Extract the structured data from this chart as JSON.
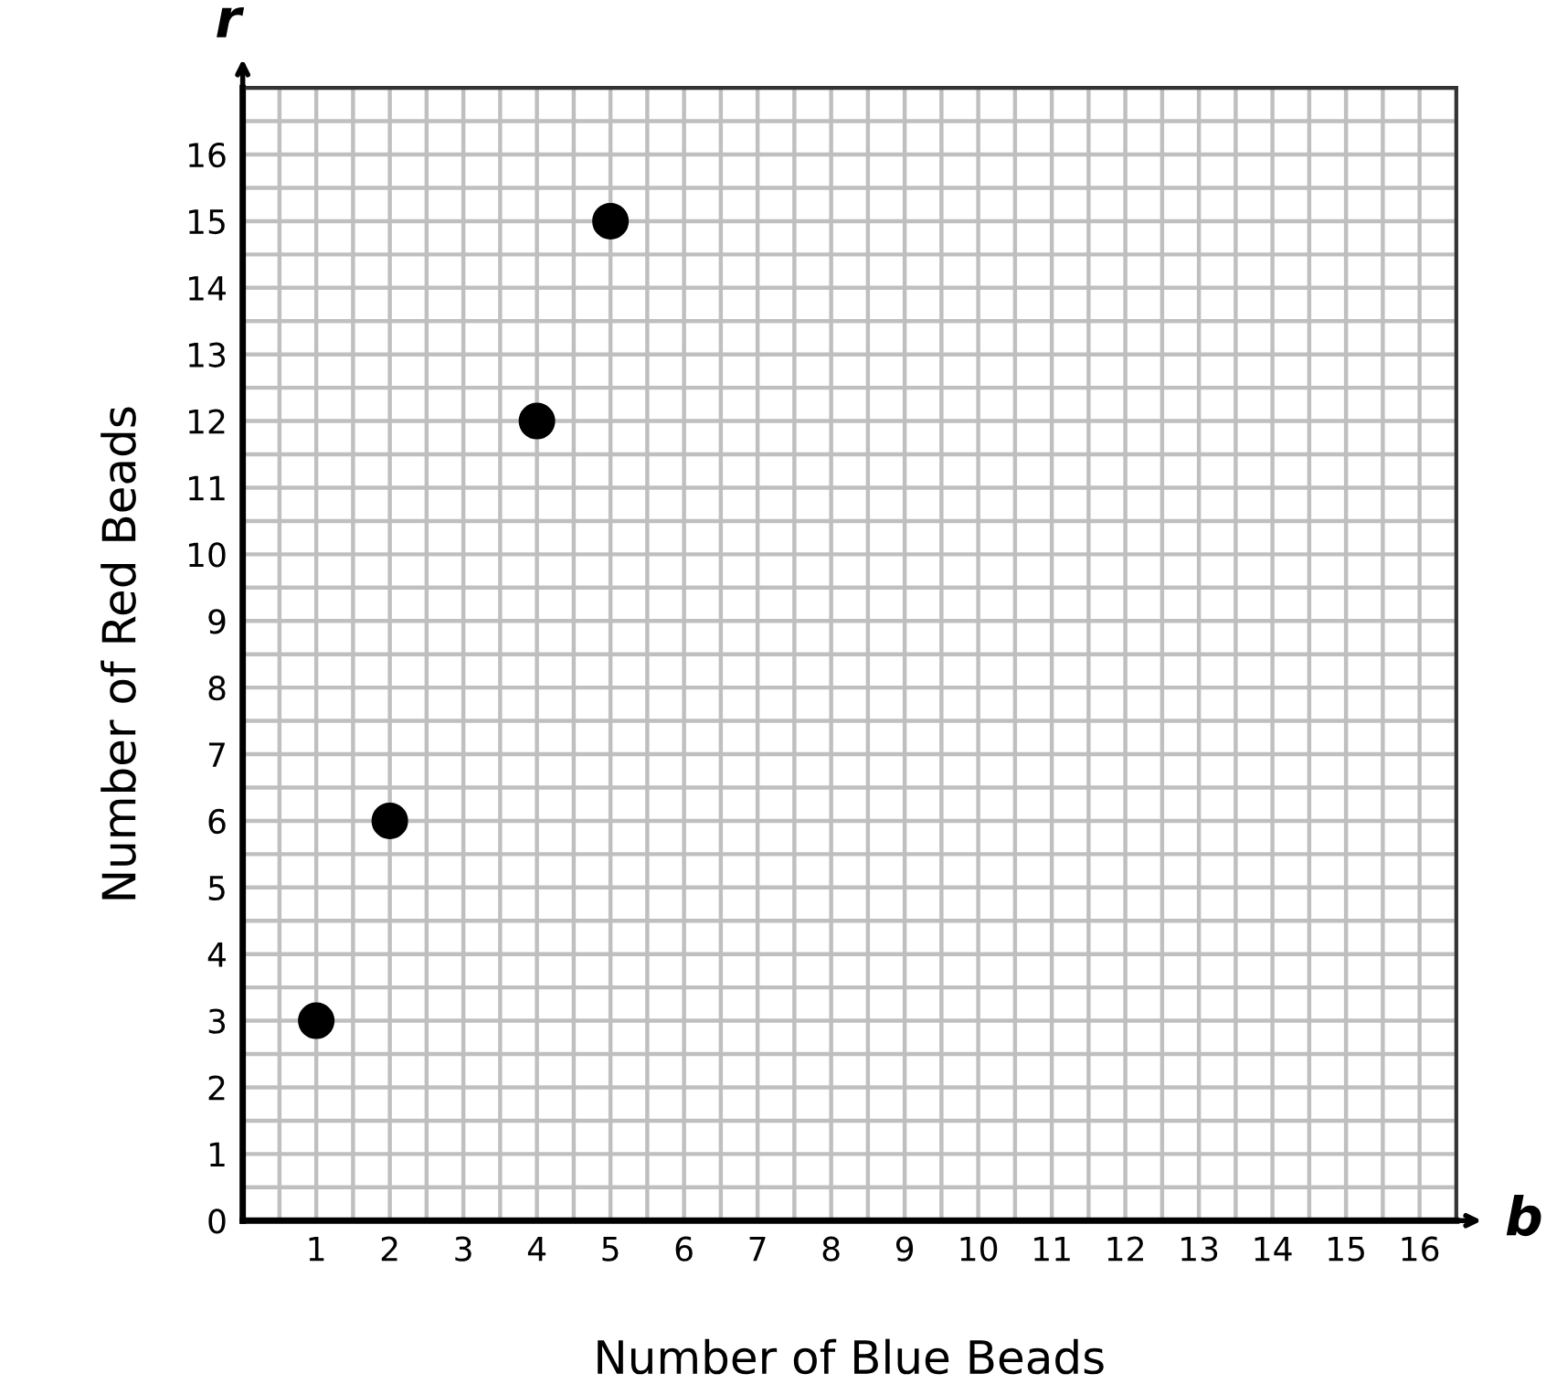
{
  "chart_data": {
    "type": "scatter",
    "xlabel": "Number of Blue Beads",
    "ylabel": "Number of Red Beads",
    "annotations": [
      "r",
      "b"
    ],
    "x": [
      1,
      2,
      4,
      5
    ],
    "series": [
      {
        "color": "#000000",
        "values": [
          3,
          6,
          12,
          15
        ]
      }
    ],
    "xlim": [
      0,
      16.5
    ],
    "ylim": [
      0,
      17
    ],
    "xticks": [
      1,
      2,
      3,
      4,
      5,
      6,
      7,
      8,
      9,
      10,
      11,
      12,
      13,
      14,
      15,
      16
    ],
    "yticks": [
      0,
      1,
      2,
      3,
      4,
      5,
      6,
      7,
      8,
      9,
      10,
      11,
      12,
      13,
      14,
      15,
      16
    ],
    "grid": true,
    "marker": "circle"
  }
}
